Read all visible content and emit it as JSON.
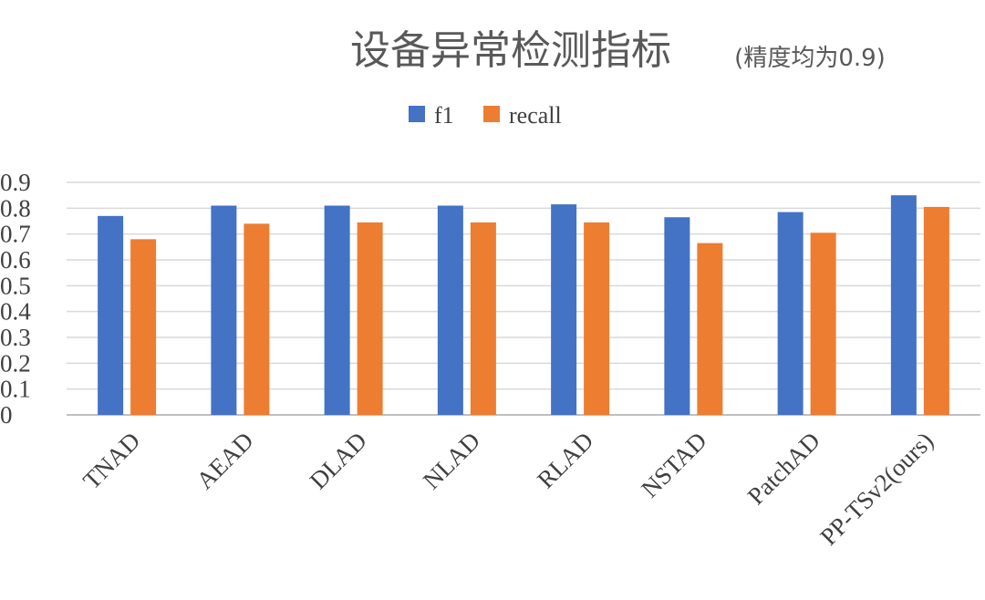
{
  "chart_data": {
    "type": "bar",
    "title": "设备异常检测指标",
    "subtitle": "(精度均为0.9)",
    "categories": [
      "TNAD",
      "AEAD",
      "DLAD",
      "NLAD",
      "RLAD",
      "NSTAD",
      "PatchAD",
      "PP-TSv2(ours)"
    ],
    "series": [
      {
        "name": "f1",
        "color": "#4472C4",
        "values": [
          0.77,
          0.81,
          0.81,
          0.81,
          0.815,
          0.765,
          0.785,
          0.85
        ]
      },
      {
        "name": "recall",
        "color": "#ED7D31",
        "values": [
          0.68,
          0.74,
          0.745,
          0.745,
          0.745,
          0.665,
          0.705,
          0.805
        ]
      }
    ],
    "yticks": [
      "0",
      "0.1",
      "0.2",
      "0.3",
      "0.4",
      "0.5",
      "0.6",
      "0.7",
      "0.8",
      "0.9"
    ],
    "ylim": [
      0,
      0.9
    ],
    "grid": true,
    "legend_position": "top"
  }
}
